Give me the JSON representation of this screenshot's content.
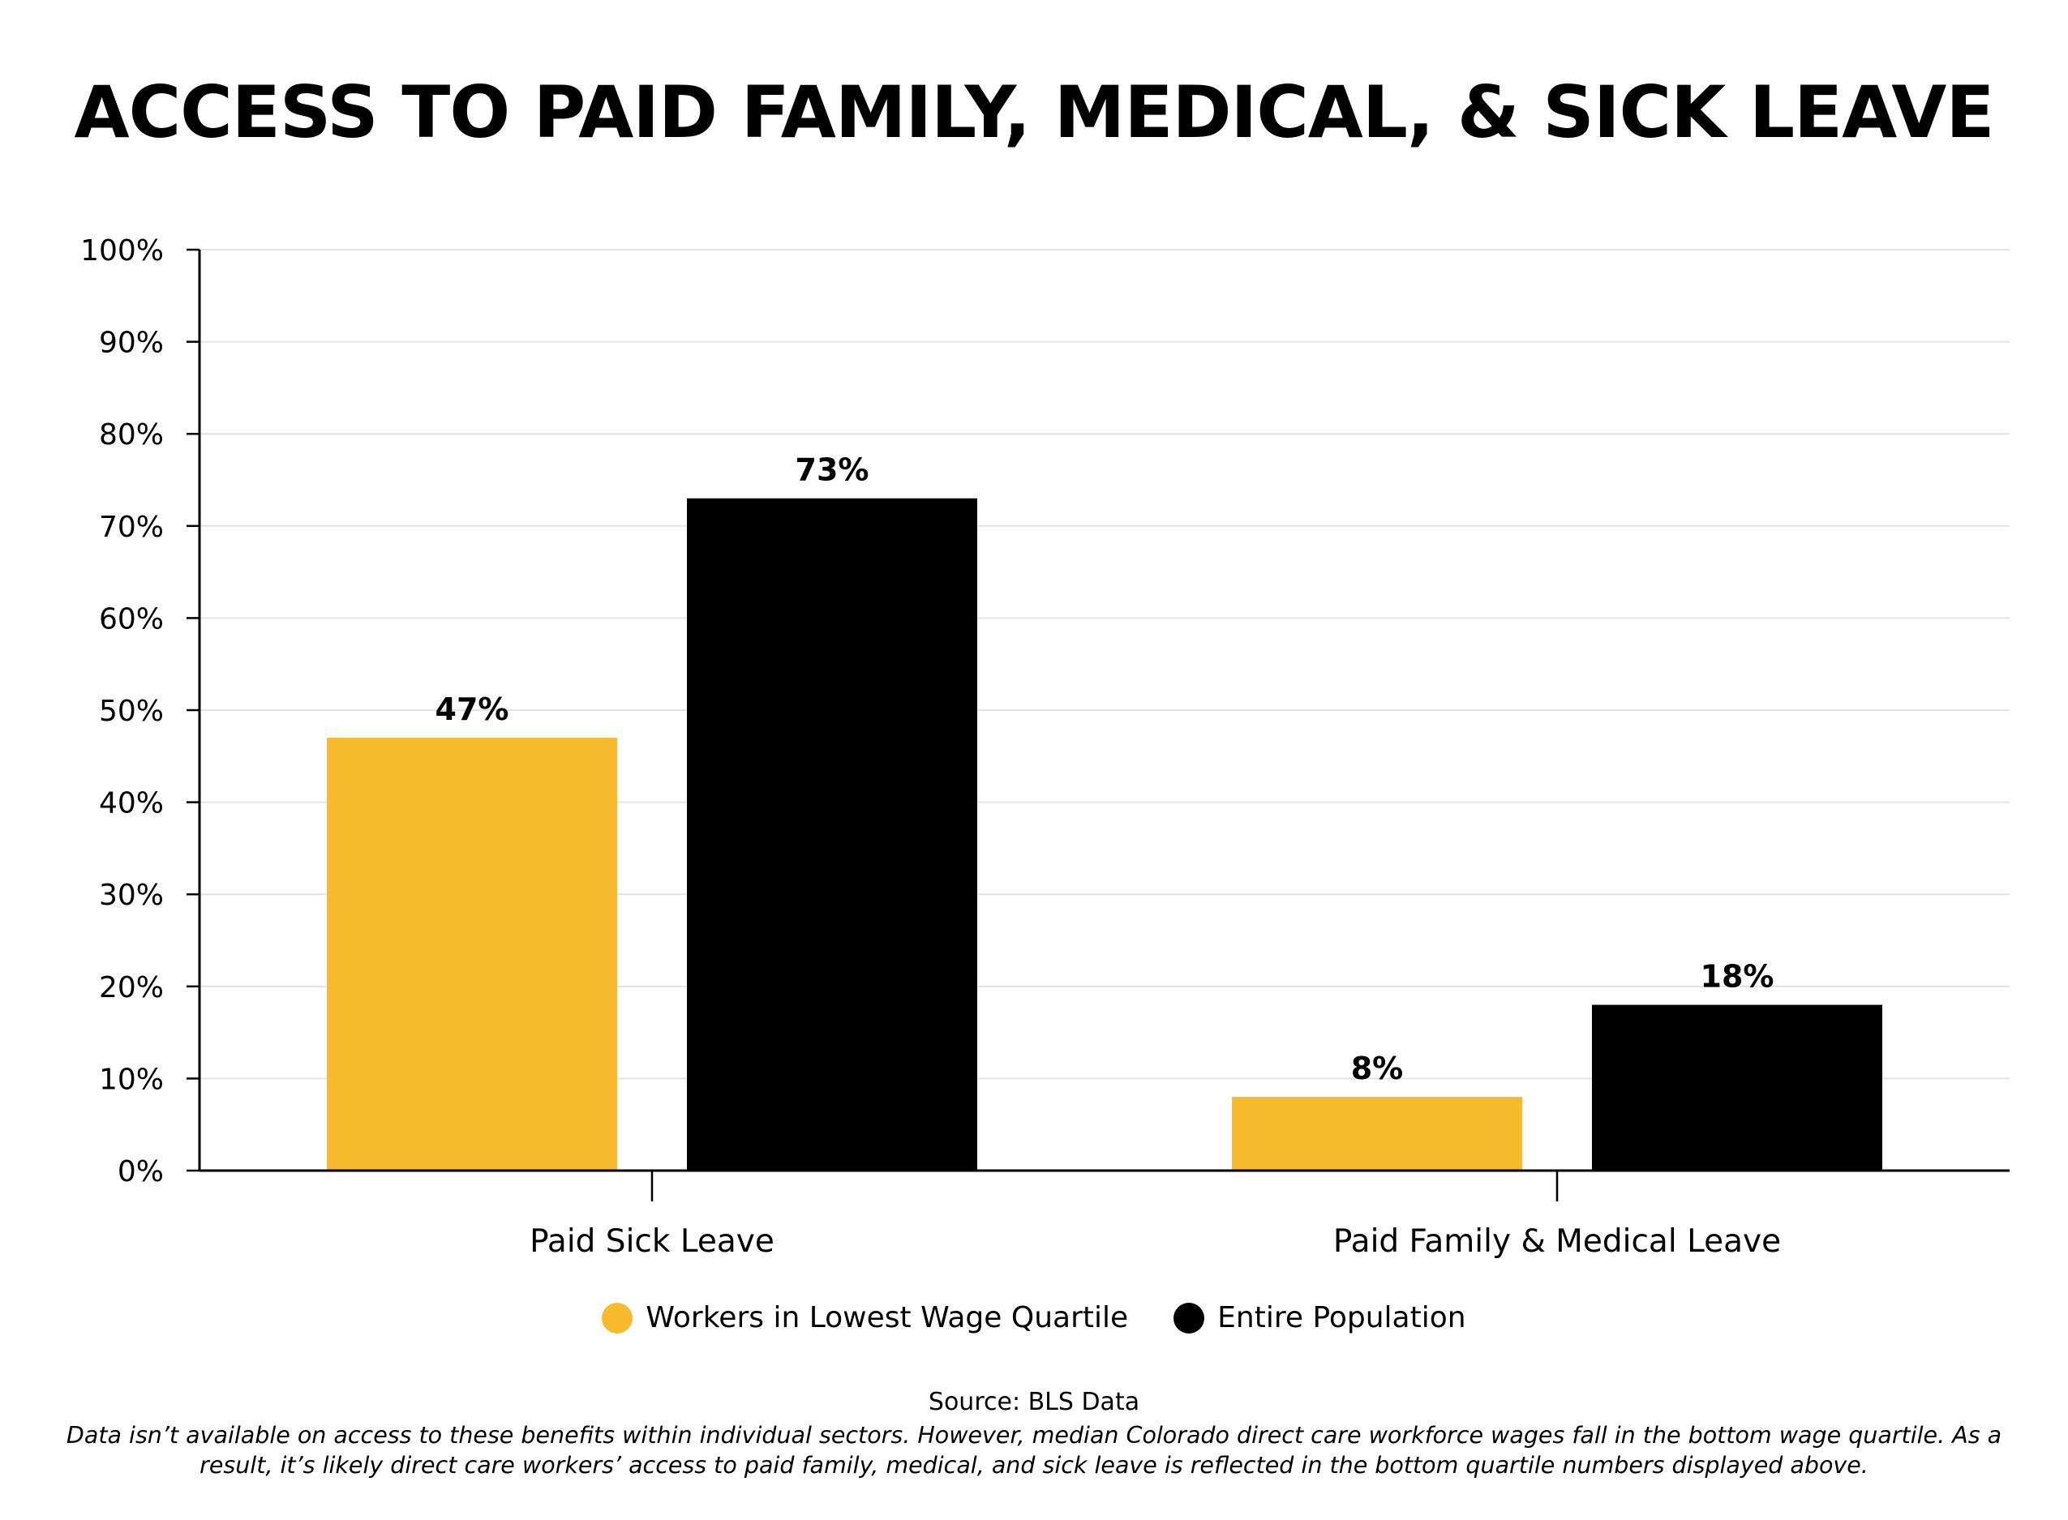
{
  "chart_data": {
    "type": "bar",
    "title": "ACCESS TO PAID FAMILY, MEDICAL, & SICK LEAVE",
    "categories": [
      "Paid Sick Leave",
      "Paid Family & Medical Leave"
    ],
    "series": [
      {
        "name": "Workers in Lowest Wage Quartile",
        "color": "#F6BA2C",
        "values": [
          47,
          8
        ],
        "labels": [
          "47%",
          "8%"
        ]
      },
      {
        "name": "Entire Population",
        "color": "#000000",
        "values": [
          73,
          18
        ],
        "labels": [
          "73%",
          "18%"
        ]
      }
    ],
    "ylim": [
      0,
      100
    ],
    "yticks": [
      0,
      10,
      20,
      30,
      40,
      50,
      60,
      70,
      80,
      90,
      100
    ],
    "ytick_labels": [
      "0%",
      "10%",
      "20%",
      "30%",
      "40%",
      "50%",
      "60%",
      "70%",
      "80%",
      "90%",
      "100%"
    ],
    "grid": true,
    "legend_position": "bottom-center"
  },
  "footer": {
    "source": "Source: BLS Data",
    "note": "Data isn’t available on access to these benefits within individual sectors. However, median Colorado direct care workforce wages fall in the bottom wage quartile. As a result, it’s likely direct care workers’ access to paid family, medical, and sick leave is reflected in the bottom quartile numbers displayed above."
  }
}
